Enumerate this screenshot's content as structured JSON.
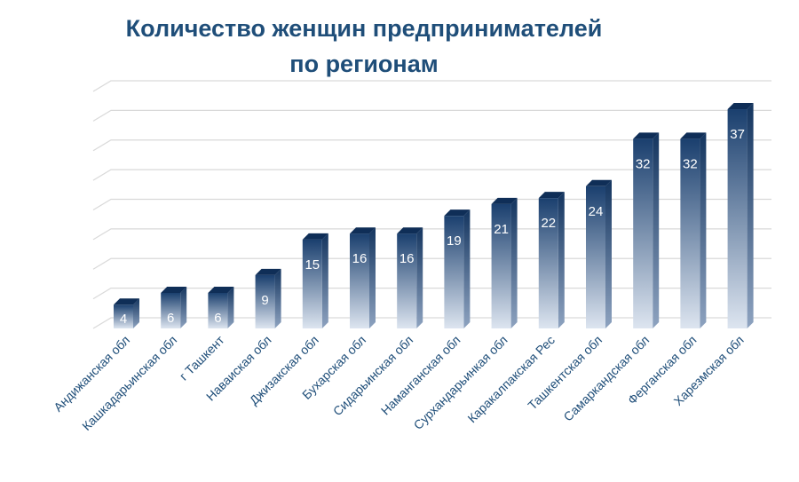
{
  "chart_data": {
    "type": "bar",
    "title_lines": [
      "Количество женщин предпринимателей",
      "по регионам"
    ],
    "categories": [
      "Андижанская обл",
      "Кашкадарьинская обл",
      "г Ташкент",
      "Наваиская обл",
      "Джизакская обл",
      "Бухарская обл",
      "Сидарьинская обл",
      "Наманганская обл",
      "Сурхандарьинкая обл",
      "Каракалпакская Рес",
      "Ташкентская обл",
      "Самаркандская обл",
      "Ферганская обл",
      "Харезмская обл"
    ],
    "values": [
      4,
      6,
      6,
      9,
      15,
      16,
      16,
      19,
      21,
      22,
      24,
      32,
      32,
      37
    ],
    "ylim": [
      0,
      40
    ],
    "grid": true,
    "legend": "none",
    "data_labels": true,
    "colors": {
      "bar_top": "#1a3f6e",
      "bar_bottom": "#dde5f0",
      "bar_cap": "#0f2e57",
      "bar_side": "#14355f",
      "grid": "#d9d9d9",
      "label": "#ffffff",
      "axis_text": "#1f4e79",
      "title": "#1f4e79"
    }
  }
}
